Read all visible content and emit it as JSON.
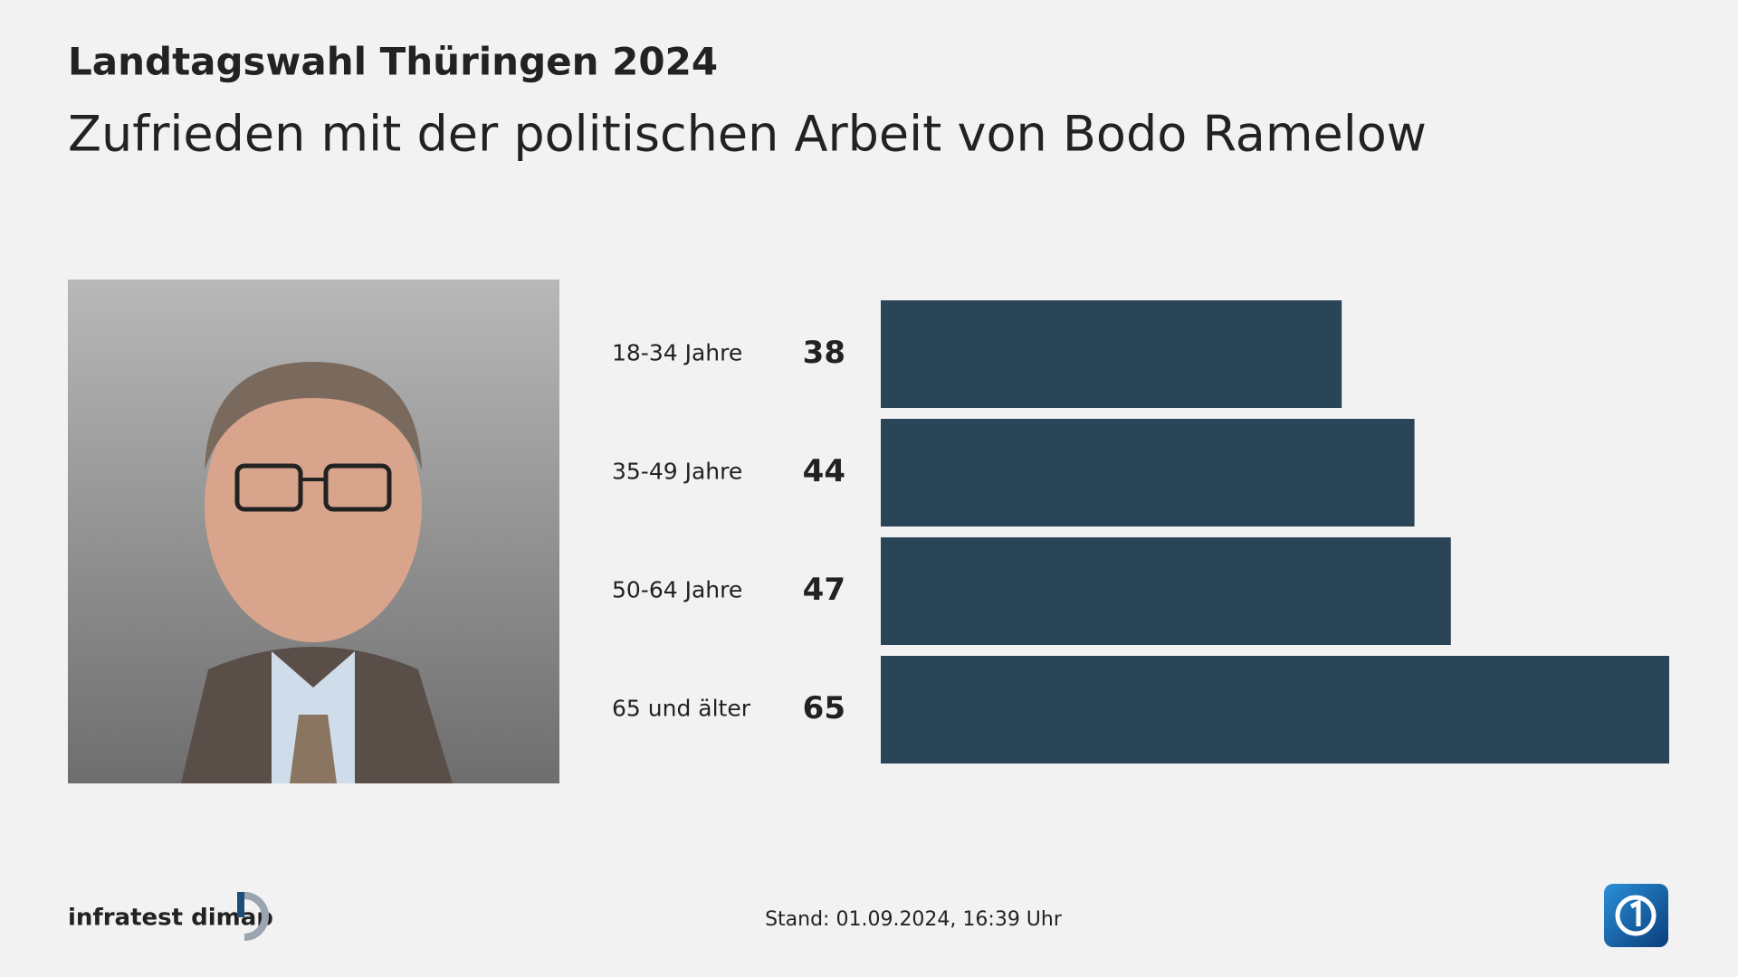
{
  "chart_data": {
    "type": "bar",
    "title": "Landtagswahl Thüringen 2024",
    "subtitle": "Zufrieden mit der politischen Arbeit von Bodo Ramelow",
    "categories": [
      "18-34 Jahre",
      "35-49 Jahre",
      "50-64 Jahre",
      "65 und älter"
    ],
    "values": [
      38,
      44,
      47,
      65
    ],
    "color": "#2b4558",
    "source": "infratest dimap",
    "footer": "Stand:  01.09.2024, 16:39 Uhr"
  }
}
